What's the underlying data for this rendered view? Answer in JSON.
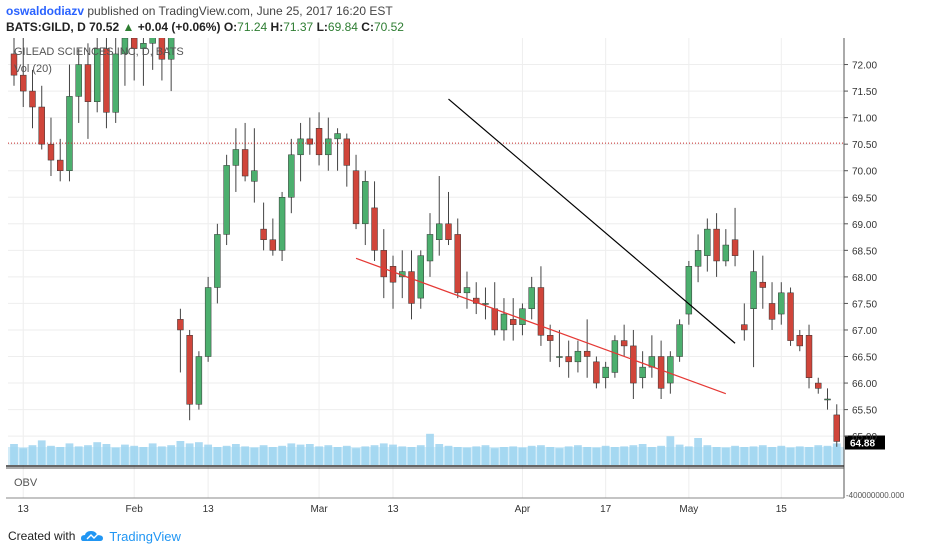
{
  "header": {
    "author": "oswaldodiazv",
    "published": "published on TradingView.com, June 25, 2017 16:20 EST",
    "symbol": "BATS:GILD, D",
    "last": "70.52",
    "change_arrow": "▲",
    "change": "+0.04 (+0.06%)",
    "o_label": "O:",
    "o": "71.24",
    "h_label": "H:",
    "h": "71.37",
    "l_label": "L:",
    "l": "69.84",
    "c_label": "C:",
    "c": "70.52"
  },
  "footer": {
    "created_with": "Created with",
    "brand": "TradingView",
    "logo_icon": "tradingview-cloud-icon"
  },
  "colors": {
    "up": "#4caf6e",
    "down": "#d0453a",
    "wedge_upper": "#000000",
    "wedge_lower": "#e53935",
    "price_level": "#c62828",
    "volume": "#9ed4f0",
    "obv": "#333333"
  },
  "chart_data": {
    "type": "candlestick",
    "title": "GILEAD SCIENCES INC, D, BATS",
    "indicator_label": "Vol (20)",
    "obv_label": "OBV",
    "obv_value": "-400000000.000",
    "price_axis": {
      "ylim": [
        64.4,
        72.5
      ],
      "ticks": [
        "72.00",
        "71.50",
        "71.00",
        "70.50",
        "70.00",
        "69.50",
        "69.00",
        "68.50",
        "68.00",
        "67.50",
        "67.00",
        "66.50",
        "66.00",
        "65.50",
        "65.00"
      ]
    },
    "last_price_label": "64.88",
    "dotted_level": 70.52,
    "x_ticks": [
      {
        "label": "13",
        "i": 1
      },
      {
        "label": "Feb",
        "i": 13
      },
      {
        "label": "13",
        "i": 21
      },
      {
        "label": "Mar",
        "i": 33
      },
      {
        "label": "13",
        "i": 41
      },
      {
        "label": "Apr",
        "i": 55
      },
      {
        "label": "17",
        "i": 64
      },
      {
        "label": "May",
        "i": 73
      },
      {
        "label": "15",
        "i": 83
      }
    ],
    "candles": [
      {
        "o": 72.2,
        "h": 72.8,
        "l": 71.6,
        "c": 71.8
      },
      {
        "o": 71.8,
        "h": 72.5,
        "l": 71.2,
        "c": 71.5
      },
      {
        "o": 71.5,
        "h": 71.9,
        "l": 70.8,
        "c": 71.2
      },
      {
        "o": 71.2,
        "h": 71.6,
        "l": 70.4,
        "c": 70.5
      },
      {
        "o": 70.5,
        "h": 71.0,
        "l": 69.9,
        "c": 70.2
      },
      {
        "o": 70.2,
        "h": 70.6,
        "l": 69.8,
        "c": 70.0
      },
      {
        "o": 70.0,
        "h": 72.0,
        "l": 69.8,
        "c": 71.4
      },
      {
        "o": 71.4,
        "h": 72.3,
        "l": 70.9,
        "c": 72.0
      },
      {
        "o": 72.0,
        "h": 72.4,
        "l": 70.6,
        "c": 71.3
      },
      {
        "o": 71.3,
        "h": 72.6,
        "l": 71.1,
        "c": 72.3
      },
      {
        "o": 72.3,
        "h": 72.7,
        "l": 70.8,
        "c": 71.1
      },
      {
        "o": 71.1,
        "h": 72.5,
        "l": 70.9,
        "c": 72.2
      },
      {
        "o": 72.2,
        "h": 72.9,
        "l": 71.6,
        "c": 72.5
      },
      {
        "o": 72.5,
        "h": 72.8,
        "l": 71.7,
        "c": 72.3
      },
      {
        "o": 72.3,
        "h": 72.6,
        "l": 71.6,
        "c": 72.4
      },
      {
        "o": 72.4,
        "h": 72.9,
        "l": 71.9,
        "c": 72.7
      },
      {
        "o": 72.7,
        "h": 72.8,
        "l": 71.7,
        "c": 72.1
      },
      {
        "o": 72.1,
        "h": 72.8,
        "l": 71.5,
        "c": 72.6
      },
      {
        "o": 67.2,
        "h": 67.4,
        "l": 66.2,
        "c": 67.0
      },
      {
        "o": 66.9,
        "h": 67.0,
        "l": 65.3,
        "c": 65.6
      },
      {
        "o": 65.6,
        "h": 66.6,
        "l": 65.5,
        "c": 66.5
      },
      {
        "o": 66.5,
        "h": 68.0,
        "l": 66.4,
        "c": 67.8
      },
      {
        "o": 67.8,
        "h": 69.0,
        "l": 67.5,
        "c": 68.8
      },
      {
        "o": 68.8,
        "h": 70.3,
        "l": 68.6,
        "c": 70.1
      },
      {
        "o": 70.1,
        "h": 70.8,
        "l": 69.6,
        "c": 70.4
      },
      {
        "o": 70.4,
        "h": 70.9,
        "l": 69.8,
        "c": 69.9
      },
      {
        "o": 69.8,
        "h": 70.8,
        "l": 69.4,
        "c": 70.0
      },
      {
        "o": 68.9,
        "h": 69.4,
        "l": 68.5,
        "c": 68.7
      },
      {
        "o": 68.7,
        "h": 69.1,
        "l": 68.4,
        "c": 68.5
      },
      {
        "o": 68.5,
        "h": 69.6,
        "l": 68.3,
        "c": 69.5
      },
      {
        "o": 69.5,
        "h": 70.6,
        "l": 69.2,
        "c": 70.3
      },
      {
        "o": 70.3,
        "h": 70.9,
        "l": 69.8,
        "c": 70.6
      },
      {
        "o": 70.6,
        "h": 71.0,
        "l": 70.3,
        "c": 70.5
      },
      {
        "o": 70.8,
        "h": 71.1,
        "l": 70.1,
        "c": 70.3
      },
      {
        "o": 70.3,
        "h": 71.0,
        "l": 70.0,
        "c": 70.6
      },
      {
        "o": 70.6,
        "h": 70.8,
        "l": 70.0,
        "c": 70.7
      },
      {
        "o": 70.6,
        "h": 70.7,
        "l": 69.7,
        "c": 70.1
      },
      {
        "o": 70.0,
        "h": 70.3,
        "l": 68.9,
        "c": 69.0
      },
      {
        "o": 69.0,
        "h": 70.0,
        "l": 68.6,
        "c": 69.8
      },
      {
        "o": 69.3,
        "h": 69.8,
        "l": 68.3,
        "c": 68.5
      },
      {
        "o": 68.5,
        "h": 68.9,
        "l": 67.6,
        "c": 68.0
      },
      {
        "o": 68.2,
        "h": 68.4,
        "l": 67.4,
        "c": 67.9
      },
      {
        "o": 68.0,
        "h": 68.5,
        "l": 67.6,
        "c": 68.1
      },
      {
        "o": 68.1,
        "h": 68.5,
        "l": 67.2,
        "c": 67.5
      },
      {
        "o": 67.6,
        "h": 68.5,
        "l": 67.4,
        "c": 68.4
      },
      {
        "o": 68.3,
        "h": 69.2,
        "l": 68.0,
        "c": 68.8
      },
      {
        "o": 68.7,
        "h": 69.9,
        "l": 68.4,
        "c": 69.0
      },
      {
        "o": 69.0,
        "h": 69.6,
        "l": 68.6,
        "c": 68.7
      },
      {
        "o": 68.8,
        "h": 69.1,
        "l": 67.6,
        "c": 67.7
      },
      {
        "o": 67.7,
        "h": 68.1,
        "l": 67.4,
        "c": 67.8
      },
      {
        "o": 67.6,
        "h": 67.9,
        "l": 67.3,
        "c": 67.5
      },
      {
        "o": 67.5,
        "h": 67.8,
        "l": 67.2,
        "c": 67.5
      },
      {
        "o": 67.4,
        "h": 67.9,
        "l": 66.9,
        "c": 67.0
      },
      {
        "o": 67.0,
        "h": 67.6,
        "l": 66.8,
        "c": 67.3
      },
      {
        "o": 67.2,
        "h": 67.6,
        "l": 66.8,
        "c": 67.1
      },
      {
        "o": 67.1,
        "h": 67.5,
        "l": 66.9,
        "c": 67.4
      },
      {
        "o": 67.4,
        "h": 68.0,
        "l": 67.2,
        "c": 67.8
      },
      {
        "o": 67.8,
        "h": 68.2,
        "l": 66.7,
        "c": 66.9
      },
      {
        "o": 66.9,
        "h": 67.1,
        "l": 66.4,
        "c": 66.8
      },
      {
        "o": 66.5,
        "h": 67.0,
        "l": 66.3,
        "c": 66.5
      },
      {
        "o": 66.5,
        "h": 66.8,
        "l": 66.1,
        "c": 66.4
      },
      {
        "o": 66.4,
        "h": 66.8,
        "l": 66.2,
        "c": 66.6
      },
      {
        "o": 66.6,
        "h": 67.2,
        "l": 66.1,
        "c": 66.5
      },
      {
        "o": 66.4,
        "h": 66.5,
        "l": 65.9,
        "c": 66.0
      },
      {
        "o": 66.1,
        "h": 66.4,
        "l": 65.9,
        "c": 66.3
      },
      {
        "o": 66.2,
        "h": 66.9,
        "l": 66.1,
        "c": 66.8
      },
      {
        "o": 66.8,
        "h": 67.1,
        "l": 66.5,
        "c": 66.7
      },
      {
        "o": 66.7,
        "h": 67.0,
        "l": 65.7,
        "c": 66.0
      },
      {
        "o": 66.1,
        "h": 66.6,
        "l": 65.9,
        "c": 66.3
      },
      {
        "o": 66.3,
        "h": 66.9,
        "l": 66.1,
        "c": 66.5
      },
      {
        "o": 66.5,
        "h": 66.8,
        "l": 65.7,
        "c": 65.9
      },
      {
        "o": 66.0,
        "h": 66.6,
        "l": 65.8,
        "c": 66.5
      },
      {
        "o": 66.5,
        "h": 67.2,
        "l": 66.4,
        "c": 67.1
      },
      {
        "o": 67.3,
        "h": 68.3,
        "l": 67.1,
        "c": 68.2
      },
      {
        "o": 68.2,
        "h": 68.8,
        "l": 67.9,
        "c": 68.5
      },
      {
        "o": 68.4,
        "h": 69.1,
        "l": 68.1,
        "c": 68.9
      },
      {
        "o": 68.9,
        "h": 69.2,
        "l": 68.0,
        "c": 68.3
      },
      {
        "o": 68.3,
        "h": 68.9,
        "l": 68.2,
        "c": 68.6
      },
      {
        "o": 68.7,
        "h": 69.3,
        "l": 68.2,
        "c": 68.4
      },
      {
        "o": 67.1,
        "h": 67.5,
        "l": 66.8,
        "c": 67.0
      },
      {
        "o": 67.4,
        "h": 68.5,
        "l": 66.3,
        "c": 68.1
      },
      {
        "o": 67.9,
        "h": 68.4,
        "l": 67.4,
        "c": 67.8
      },
      {
        "o": 67.5,
        "h": 67.9,
        "l": 67.0,
        "c": 67.2
      },
      {
        "o": 67.3,
        "h": 67.9,
        "l": 67.1,
        "c": 67.7
      },
      {
        "o": 67.7,
        "h": 67.8,
        "l": 66.7,
        "c": 66.8
      },
      {
        "o": 66.9,
        "h": 67.0,
        "l": 66.6,
        "c": 66.7
      },
      {
        "o": 66.9,
        "h": 67.1,
        "l": 65.9,
        "c": 66.1
      },
      {
        "o": 66.0,
        "h": 66.1,
        "l": 65.8,
        "c": 65.9
      },
      {
        "o": 65.7,
        "h": 65.9,
        "l": 65.5,
        "c": 65.7
      },
      {
        "o": 65.4,
        "h": 65.6,
        "l": 64.8,
        "c": 64.9
      }
    ],
    "volumes": [
      0.35,
      0.28,
      0.33,
      0.41,
      0.32,
      0.3,
      0.36,
      0.31,
      0.33,
      0.38,
      0.35,
      0.29,
      0.34,
      0.32,
      0.3,
      0.36,
      0.31,
      0.33,
      0.4,
      0.36,
      0.38,
      0.34,
      0.3,
      0.32,
      0.35,
      0.31,
      0.29,
      0.33,
      0.3,
      0.32,
      0.36,
      0.34,
      0.35,
      0.31,
      0.33,
      0.3,
      0.32,
      0.28,
      0.31,
      0.33,
      0.36,
      0.34,
      0.31,
      0.3,
      0.33,
      0.52,
      0.35,
      0.32,
      0.3,
      0.29,
      0.31,
      0.33,
      0.28,
      0.3,
      0.31,
      0.29,
      0.32,
      0.33,
      0.3,
      0.28,
      0.31,
      0.33,
      0.3,
      0.29,
      0.32,
      0.3,
      0.31,
      0.33,
      0.35,
      0.3,
      0.32,
      0.48,
      0.34,
      0.31,
      0.45,
      0.33,
      0.3,
      0.29,
      0.32,
      0.3,
      0.31,
      0.33,
      0.3,
      0.32,
      0.29,
      0.31,
      0.3,
      0.33,
      0.32,
      0.36
    ],
    "wedge_upper": {
      "from": {
        "i": 47,
        "price": 71.35
      },
      "to": {
        "i": 78,
        "price": 66.75
      }
    },
    "wedge_lower": {
      "from": {
        "i": 37,
        "price": 68.35
      },
      "to": {
        "i": 77,
        "price": 65.8
      }
    }
  }
}
